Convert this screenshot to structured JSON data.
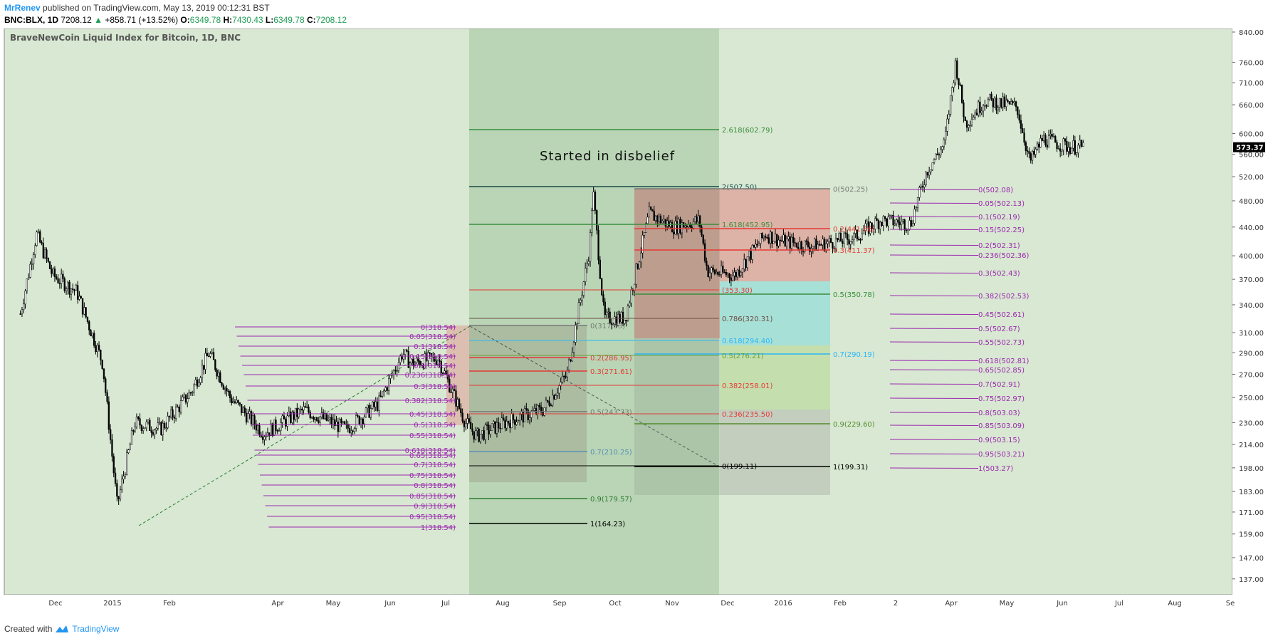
{
  "header": {
    "author": "MrRenev",
    "published_text": "published on TradingView.com, May 13, 2019 00:12:31 BST",
    "symbol": "BNC:BLX, 1D",
    "price": "7208.12",
    "change_arrow": "▲",
    "change": "+858.71 (+13.52%)",
    "o_label": "O:",
    "o": "6349.78",
    "h_label": "H:",
    "h": "7430.43",
    "l_label": "L:",
    "l": "6349.78",
    "c_label": "C:",
    "c": "7208.12"
  },
  "footer": {
    "created_with": "Created with",
    "brand": "TradingView"
  },
  "colors": {
    "background": "#d8e8d2",
    "candle": "#000000",
    "fib_purple": "#9c27b0",
    "fib_red": "#e53935",
    "fib_green": "#388e3c",
    "fib_teal": "#00897b",
    "fib_blue": "#29b6f6",
    "last_price_bg": "#000000"
  },
  "chart_data": {
    "type": "candlestick",
    "title": "BraveNewCoin Liquid Index for Bitcoin, 1D, BNC",
    "x_tick_labels": [
      "Dec",
      "2015",
      "Feb",
      "Apr",
      "May",
      "Jun",
      "Jul",
      "Aug",
      "Sep",
      "Oct",
      "Nov",
      "Dec",
      "2016",
      "Feb",
      "2",
      "Apr",
      "May",
      "Jun",
      "Jul",
      "Aug",
      "Se"
    ],
    "y_tick_labels": [
      "840.00",
      "760.00",
      "710.00",
      "660.00",
      "600.00",
      "560.00",
      "520.00",
      "480.00",
      "440.00",
      "400.00",
      "370.00",
      "340.00",
      "310.00",
      "290.00",
      "270.00",
      "250.00",
      "230.00",
      "214.00",
      "198.00",
      "183.00",
      "171.00",
      "159.00",
      "147.00",
      "137.00"
    ],
    "y_scale": "log",
    "ylim": [
      130,
      850
    ],
    "last_price_label": "573.37",
    "annotation": "Started in disbelief",
    "approx_close_path": [
      {
        "date": "2014-11-15",
        "close": 330
      },
      {
        "date": "2014-11-25",
        "close": 430
      },
      {
        "date": "2014-12-05",
        "close": 375
      },
      {
        "date": "2014-12-20",
        "close": 355
      },
      {
        "date": "2015-01-05",
        "close": 280
      },
      {
        "date": "2015-01-14",
        "close": 175
      },
      {
        "date": "2015-01-25",
        "close": 230
      },
      {
        "date": "2015-02-10",
        "close": 225
      },
      {
        "date": "2015-03-01",
        "close": 255
      },
      {
        "date": "2015-03-12",
        "close": 290
      },
      {
        "date": "2015-03-25",
        "close": 250
      },
      {
        "date": "2015-04-15",
        "close": 222
      },
      {
        "date": "2015-05-10",
        "close": 240
      },
      {
        "date": "2015-06-05",
        "close": 225
      },
      {
        "date": "2015-06-25",
        "close": 245
      },
      {
        "date": "2015-07-10",
        "close": 290
      },
      {
        "date": "2015-07-15",
        "close": 280
      },
      {
        "date": "2015-08-01",
        "close": 285
      },
      {
        "date": "2015-08-18",
        "close": 230
      },
      {
        "date": "2015-08-25",
        "close": 220
      },
      {
        "date": "2015-09-15",
        "close": 232
      },
      {
        "date": "2015-10-05",
        "close": 240
      },
      {
        "date": "2015-10-20",
        "close": 270
      },
      {
        "date": "2015-11-03",
        "close": 410
      },
      {
        "date": "2015-11-05",
        "close": 500
      },
      {
        "date": "2015-11-12",
        "close": 325
      },
      {
        "date": "2015-11-25",
        "close": 325
      },
      {
        "date": "2015-12-10",
        "close": 460
      },
      {
        "date": "2015-12-25",
        "close": 440
      },
      {
        "date": "2016-01-10",
        "close": 450
      },
      {
        "date": "2016-01-15",
        "close": 380
      },
      {
        "date": "2016-02-01",
        "close": 375
      },
      {
        "date": "2016-02-20",
        "close": 430
      },
      {
        "date": "2016-03-01",
        "close": 420
      },
      {
        "date": "2016-03-20",
        "close": 413
      },
      {
        "date": "2016-04-15",
        "close": 425
      },
      {
        "date": "2016-05-01",
        "close": 450
      },
      {
        "date": "2016-05-20",
        "close": 445
      },
      {
        "date": "2016-05-30",
        "close": 530
      },
      {
        "date": "2016-06-10",
        "close": 580
      },
      {
        "date": "2016-06-17",
        "close": 760
      },
      {
        "date": "2016-06-23",
        "close": 620
      },
      {
        "date": "2016-07-05",
        "close": 670
      },
      {
        "date": "2016-07-25",
        "close": 655
      },
      {
        "date": "2016-08-02",
        "close": 545
      },
      {
        "date": "2016-08-10",
        "close": 590
      },
      {
        "date": "2016-08-25",
        "close": 575
      },
      {
        "date": "2016-09-05",
        "close": 573
      }
    ],
    "fib_sets": [
      {
        "name": "fib-left",
        "labels": [
          "0(318.54)",
          "0.05(318.54)",
          "0.1(318.54)",
          "0.15(318.54)",
          "0.2(318.54)",
          "0.236(318.54)",
          "0.3(318.54)",
          "0.382(318.54)",
          "0.45(318.54)",
          "0.5(318.54)",
          "0.55(318.54)",
          "0.618(318.54)",
          "0.65(318.54)",
          "0.7(318.54)",
          "0.75(318.54)",
          "0.8(318.54)",
          "0.85(318.54)",
          "0.9(318.54)",
          "0.95(318.54)",
          "1(318.54)"
        ]
      },
      {
        "name": "fib-right",
        "labels": [
          "0(502.08)",
          "0.05(502.13)",
          "0.1(502.19)",
          "0.15(502.25)",
          "0.2(502.31)",
          "0.236(502.36)",
          "0.3(502.43)",
          "0.382(502.53)",
          "0.45(502.61)",
          "0.5(502.67)",
          "0.55(502.73)",
          "0.618(502.81)",
          "0.65(502.85)",
          "0.7(502.91)",
          "0.75(502.97)",
          "0.8(503.03)",
          "0.85(503.09)",
          "0.9(503.15)",
          "0.95(503.21)",
          "1(503.27)"
        ]
      },
      {
        "name": "fib-ext-1",
        "labels": [
          "2.618(602.79)",
          "2(507.50)",
          "1.618(452.95)",
          "0(317.83)",
          "0.2(286.95)",
          "0.3(271.61)",
          "0.5(243.73)",
          "0.7(210.25)",
          "0.9(179.57)",
          "1(164.23)"
        ]
      },
      {
        "name": "fib-ext-2",
        "labels": [
          "0(502.25)",
          "0.2(441.66)",
          "0.3(411.37)",
          "0.5(350.78)",
          "0.7(290.19)",
          "0.9(229.60)",
          "1(199.31)"
        ]
      },
      {
        "name": "fib-ext-3",
        "labels": [
          "(353.30)",
          "0.786(320.31)",
          "0.618(294.40)",
          "0.5(276.21)",
          "0.382(258.01)",
          "0.236(235.50)",
          "0(199.11)"
        ]
      }
    ]
  }
}
